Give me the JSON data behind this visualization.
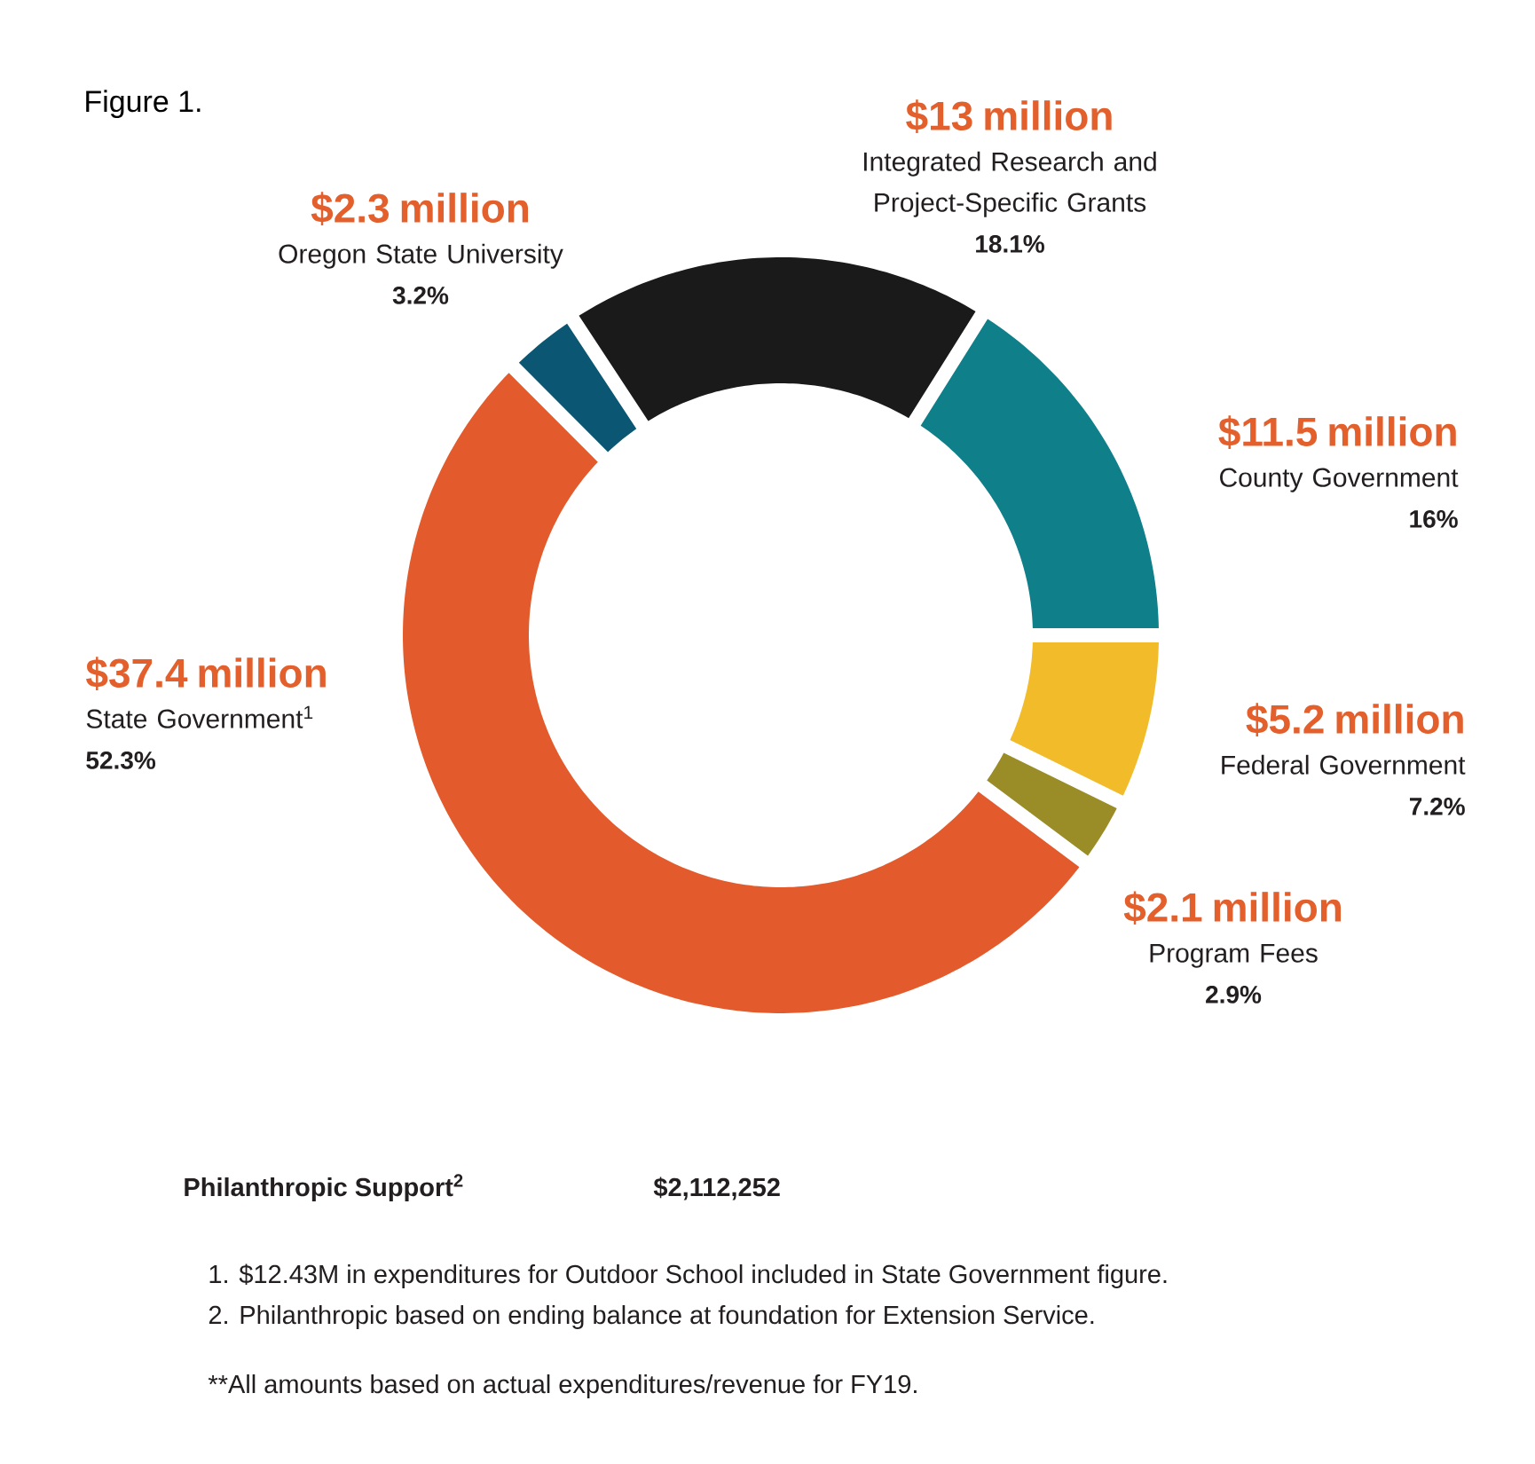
{
  "chart_data": {
    "type": "donut",
    "title": "Figure 1.",
    "categories": [
      "County Government",
      "Integrated Research and Project-Specific Grants",
      "Oregon State University",
      "State Government$^{1}$",
      "Program Fees",
      "Federal Government"
    ],
    "values": [
      11.5,
      13,
      2.3,
      37.4,
      2.1,
      5.2
    ],
    "colors": [
      "#0f7f8a",
      "#1b1a1a",
      "#0b5672",
      "#e35b2d",
      "#9a8c27",
      "#f1bb2a"
    ],
    "value_labels": [
      "$11.5 million",
      "$13 million",
      "$2.3 million",
      "$37.4 million",
      "$2.1 million",
      "$5.2 million"
    ],
    "annotations": [
      "16%",
      "18.1%",
      "3.2%",
      "52.3%",
      "2.9%",
      "7.2%",
      "Philanthropic Support$^{2}$",
      "$2,112,252",
      "1. $12.43M in expenditures for Outdoor School included in State Government figure.",
      "2. Philanthropic based on ending balance at foundation for Extension Service.",
      "**All amounts based on actual expenditures/revenue for FY19."
    ]
  }
}
